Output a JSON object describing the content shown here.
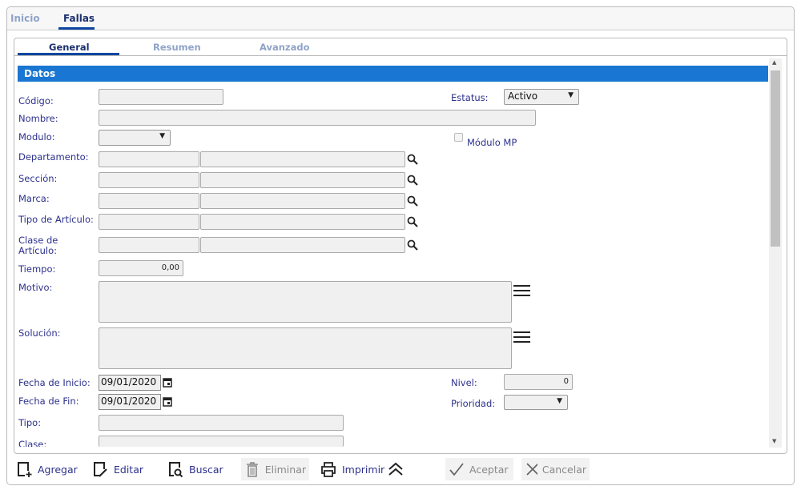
{
  "tabs": [
    {
      "label": "Inicio"
    },
    {
      "label": "Fallas"
    }
  ],
  "subtabs": [
    {
      "label": "General"
    },
    {
      "label": "Resumen"
    },
    {
      "label": "Avanzado"
    }
  ],
  "section": "Datos",
  "fields": {
    "codigo": {
      "label": "Código:",
      "value": ""
    },
    "nombre": {
      "label": "Nombre:",
      "value": ""
    },
    "modulo": {
      "label": "Modulo:",
      "value": ""
    },
    "departamento": {
      "label": "Departamento:"
    },
    "seccion": {
      "label": "Sección:"
    },
    "marca": {
      "label": "Marca:"
    },
    "tipo_articulo": {
      "label": "Tipo de Artículo:"
    },
    "clase_articulo": {
      "label_line1": "Clase de",
      "label_line2": "Artículo:"
    },
    "tiempo": {
      "label": "Tiempo:",
      "value": "0,00"
    },
    "motivo": {
      "label": "Motivo:"
    },
    "solucion": {
      "label": "Solución:"
    },
    "fecha_inicio": {
      "label": "Fecha de Inicio:",
      "value": "09/01/2020"
    },
    "fecha_fin": {
      "label": "Fecha de Fin:",
      "value": "09/01/2020"
    },
    "tipo": {
      "label": "Tipo:"
    },
    "clase": {
      "label": "Clase:"
    },
    "estatus": {
      "label": "Estatus:",
      "value": "Activo"
    },
    "modulo_mp": {
      "label": "Módulo MP",
      "checked": false
    },
    "nivel": {
      "label": "Nivel:",
      "value": "0"
    },
    "prioridad": {
      "label": "Prioridad:",
      "value": ""
    }
  },
  "toolbar": {
    "agregar": "Agregar",
    "editar": "Editar",
    "buscar": "Buscar",
    "eliminar": "Eliminar",
    "imprimir": "Imprimir",
    "aceptar": "Aceptar",
    "cancelar": "Cancelar"
  }
}
